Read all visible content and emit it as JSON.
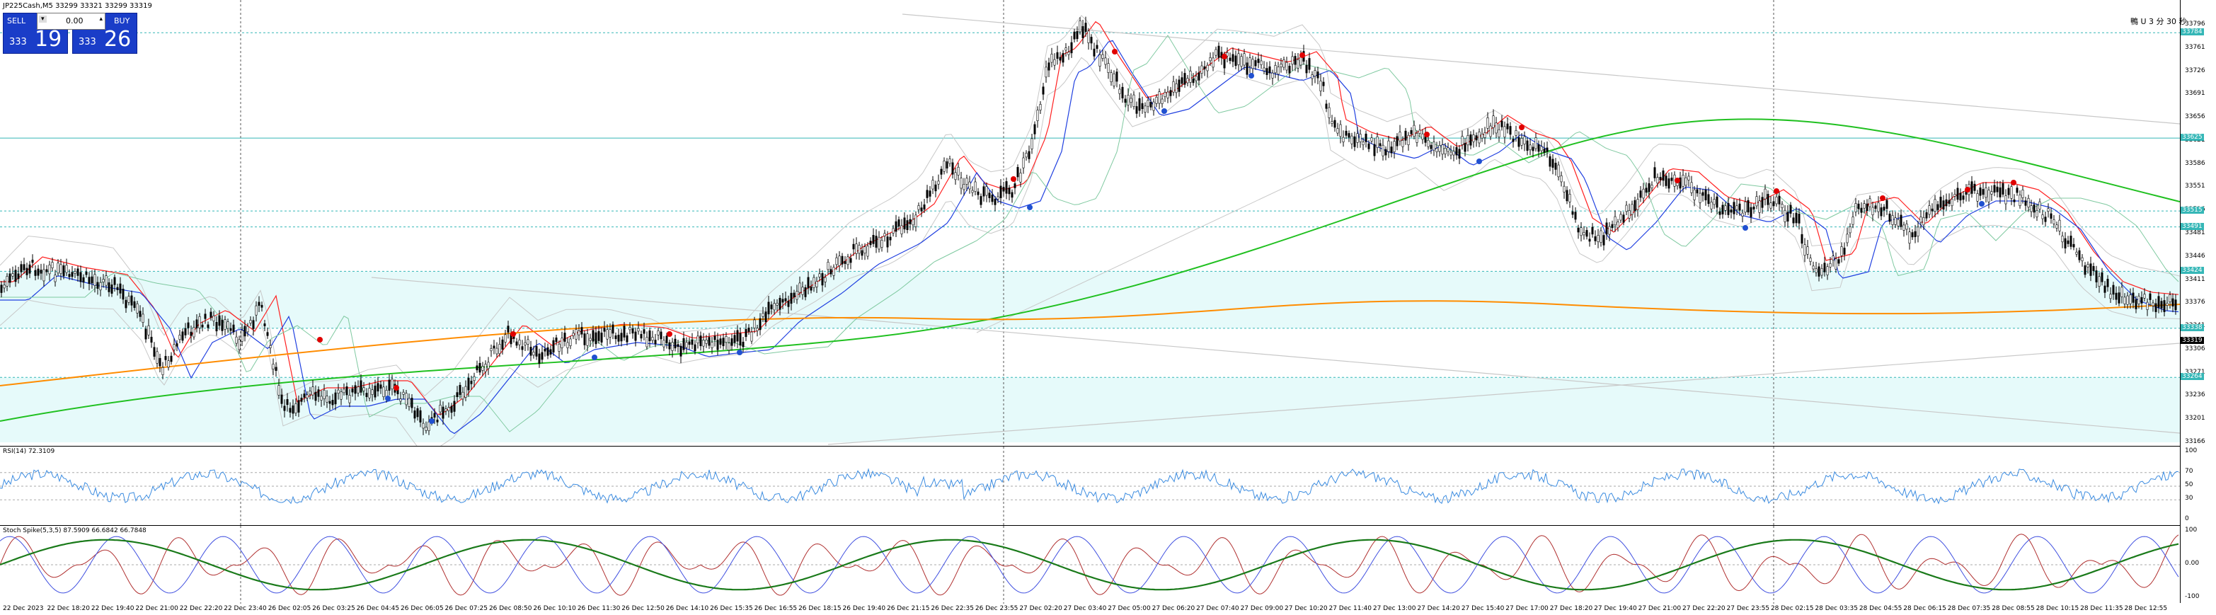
{
  "symbol_line": "JP225Cash,M5  33299 33321 33299 33319",
  "trade_panel": {
    "sell_label": "SELL",
    "buy_label": "BUY",
    "lot_value": "0.00",
    "sell_price_small": "333",
    "sell_price_big": "19",
    "buy_price_small": "333",
    "buy_price_big": "26"
  },
  "header_right_text": "鴨 U  3  分  30 秒",
  "price_scale": [
    "33796",
    "33761",
    "33726",
    "33691",
    "33656",
    "33621",
    "33586",
    "33551",
    "33516",
    "33481",
    "33446",
    "33411",
    "33376",
    "33341",
    "33306",
    "33271",
    "33236",
    "33201",
    "33166"
  ],
  "price_tags": [
    {
      "value": "33784",
      "color": "#35b7b7"
    },
    {
      "value": "33625",
      "color": "#35b7b7"
    },
    {
      "value": "33515",
      "color": "#35b7b7"
    },
    {
      "value": "33491",
      "color": "#35b7b7"
    },
    {
      "value": "33424",
      "color": "#35b7b7"
    },
    {
      "value": "33338",
      "color": "#35b7b7"
    },
    {
      "value": "33319",
      "color": "#000000"
    },
    {
      "value": "33264",
      "color": "#35b7b7"
    }
  ],
  "rsi": {
    "label": "RSI(14) 72.3109",
    "scale": [
      "100",
      "70",
      "50",
      "30",
      "0"
    ]
  },
  "stoch": {
    "label": "Stoch Spike(5,3,5) 87.5909 66.6842 66.7848",
    "scale": [
      "100",
      "0.00",
      "-100"
    ]
  },
  "time_labels": [
    "22 Dec 2023",
    "22 Dec 18:20",
    "22 Dec 19:40",
    "22 Dec 21:00",
    "22 Dec 22:20",
    "22 Dec 23:40",
    "26 Dec 02:05",
    "26 Dec 03:25",
    "26 Dec 04:45",
    "26 Dec 06:05",
    "26 Dec 07:25",
    "26 Dec 08:50",
    "26 Dec 10:10",
    "26 Dec 11:30",
    "26 Dec 12:50",
    "26 Dec 14:10",
    "26 Dec 15:35",
    "26 Dec 16:55",
    "26 Dec 18:15",
    "26 Dec 19:40",
    "26 Dec 21:15",
    "26 Dec 22:35",
    "26 Dec 23:55",
    "27 Dec 02:20",
    "27 Dec 03:40",
    "27 Dec 05:00",
    "27 Dec 06:20",
    "27 Dec 07:40",
    "27 Dec 09:00",
    "27 Dec 10:20",
    "27 Dec 11:40",
    "27 Dec 13:00",
    "27 Dec 14:20",
    "27 Dec 15:40",
    "27 Dec 17:00",
    "27 Dec 18:20",
    "27 Dec 19:40",
    "27 Dec 21:00",
    "27 Dec 22:20",
    "27 Dec 23:55",
    "28 Dec 02:15",
    "28 Dec 03:35",
    "28 Dec 04:55",
    "28 Dec 06:15",
    "28 Dec 07:35",
    "28 Dec 08:55",
    "28 Dec 10:15",
    "28 Dec 11:35",
    "28 Dec 12:55"
  ],
  "colors": {
    "bullish": "#000000",
    "ma_red": "#ff2020",
    "ma_blue": "#2040e0",
    "ma_green": "#20c020",
    "ma_orange": "#ff8c00",
    "band_gray": "#c8c8c8",
    "level_cyan": "#35b7b7",
    "zone_fill": "#e6fafa"
  }
}
